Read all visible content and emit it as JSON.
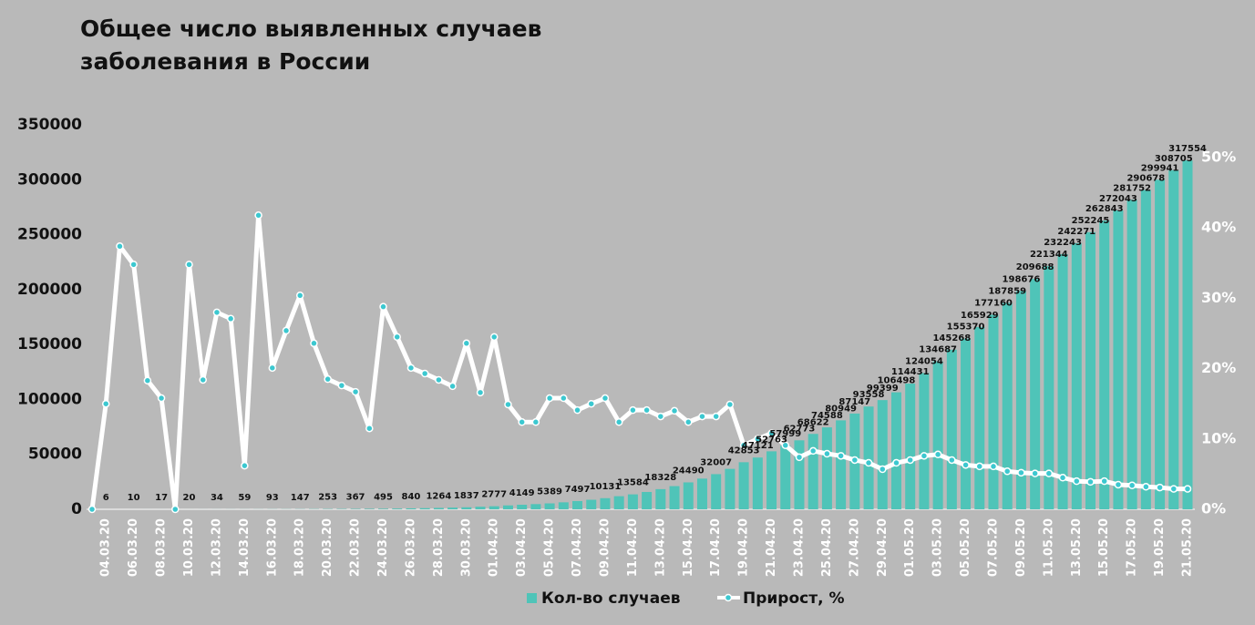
{
  "chart_data": {
    "type": "bar_line",
    "title": [
      "Общее число выявленных случаев",
      "заболевания в России"
    ],
    "categories": [
      null,
      "04.03.20",
      null,
      "06.03.20",
      null,
      "08.03.20",
      null,
      "10.03.20",
      null,
      "12.03.20",
      null,
      "14.03.20",
      null,
      "16.03.20",
      null,
      "18.03.20",
      null,
      "20.03.20",
      null,
      "22.03.20",
      null,
      "24.03.20",
      null,
      "26.03.20",
      null,
      "28.03.20",
      null,
      "30.03.20",
      null,
      "01.04.20",
      null,
      "03.04.20",
      null,
      "05.04.20",
      null,
      "07.04.20",
      null,
      "09.04.20",
      null,
      "11.04.20",
      null,
      "13.04.20",
      null,
      "15.04.20",
      null,
      "17.04.20",
      null,
      "19.04.20",
      null,
      "21.04.20",
      null,
      "23.04.20",
      null,
      "25.04.20",
      null,
      "27.04.20",
      null,
      "29.04.20",
      null,
      "01.05.20",
      null,
      "03.05.20",
      null,
      "05.05.20",
      null,
      "07.05.20",
      null,
      "09.05.20",
      null,
      "11.05.20",
      null,
      "13.05.20",
      null,
      "15.05.20",
      null,
      "17.05.20",
      null,
      "19.05.20",
      null,
      "21.05.20"
    ],
    "series": [
      {
        "name": "Кол-во случаев",
        "color": "#4fc4b8",
        "axis": "y",
        "values": [
          3,
          6,
          7,
          10,
          14,
          17,
          17,
          20,
          28,
          34,
          45,
          59,
          63,
          93,
          114,
          147,
          199,
          253,
          306,
          367,
          438,
          495,
          658,
          840,
          1036,
          1264,
          1534,
          1837,
          2337,
          2777,
          3548,
          4149,
          4731,
          5389,
          6343,
          7497,
          8672,
          10131,
          11917,
          13584,
          15770,
          18328,
          21102,
          24490,
          27938,
          32007,
          36793,
          42853,
          47121,
          52763,
          57999,
          62773,
          68622,
          74588,
          80949,
          87147,
          93558,
          99399,
          106498,
          114431,
          124054,
          134687,
          145268,
          155370,
          165929,
          177160,
          187859,
          198676,
          209688,
          221344,
          232243,
          242271,
          252245,
          262843,
          272043,
          281752,
          290678,
          299941,
          308705,
          317554
        ],
        "value_labels": [
          null,
          "6",
          null,
          "10",
          null,
          "17",
          null,
          "20",
          null,
          "34",
          null,
          "59",
          null,
          "93",
          null,
          "147",
          null,
          "253",
          null,
          "367",
          null,
          "495",
          null,
          "840",
          null,
          "1264",
          null,
          "1837",
          null,
          "2777",
          null,
          "4149",
          null,
          "5389",
          null,
          "7497",
          null,
          "10131",
          null,
          "13584",
          null,
          "18328",
          null,
          "24490",
          null,
          "32007",
          null,
          "42853",
          "47121",
          "52763",
          "57999",
          "62773",
          "68622",
          "74588",
          "80949",
          "87147",
          "93558",
          "99399",
          "106498",
          "114431",
          "124054",
          "134687",
          "145268",
          "155370",
          "165929",
          "177160",
          "187859",
          "198676",
          "209688",
          "221344",
          "232243",
          "242271",
          "252245",
          "262843",
          "272043",
          "281752",
          "290678",
          "299941",
          "308705",
          "317554"
        ]
      },
      {
        "name": "Прирост, %",
        "color": "#ffffff",
        "marker_color": "#3cc8d0",
        "axis": "y2",
        "values": [
          0,
          15,
          37.4,
          34.8,
          18.3,
          15.8,
          0,
          34.8,
          18.4,
          28,
          27.1,
          6.2,
          41.8,
          20.1,
          25.4,
          30.4,
          23.6,
          18.5,
          17.6,
          16.7,
          11.5,
          28.8,
          24.5,
          20.1,
          19.3,
          18.4,
          17.5,
          23.6,
          16.6,
          24.5,
          14.9,
          12.4,
          12.4,
          15.8,
          15.8,
          14.1,
          15,
          15.8,
          12.4,
          14.1,
          14.1,
          13.2,
          14,
          12.4,
          13.2,
          13.2,
          14.9,
          9.1,
          10,
          10.8,
          9.1,
          7.4,
          8.3,
          7.9,
          7.6,
          7,
          6.6,
          5.7,
          6.6,
          7,
          7.6,
          7.8,
          7,
          6.3,
          6.1,
          6.1,
          5.4,
          5.2,
          5.1,
          5.1,
          4.5,
          4,
          3.9,
          4,
          3.5,
          3.4,
          3.2,
          3.1,
          2.9,
          2.9
        ]
      }
    ],
    "ylim": [
      0,
      350000
    ],
    "yticks": [
      0,
      50000,
      100000,
      150000,
      200000,
      250000,
      300000,
      350000
    ],
    "y2lim": [
      0,
      50
    ],
    "y2ticks": [
      {
        "value": 0,
        "label": "0%"
      },
      {
        "value": 10,
        "label": "10%"
      },
      {
        "value": 20,
        "label": "20%"
      },
      {
        "value": 30,
        "label": "30%"
      },
      {
        "value": 40,
        "label": "40%"
      },
      {
        "value": 50,
        "label": "50%"
      }
    ],
    "legend": "bottom"
  }
}
